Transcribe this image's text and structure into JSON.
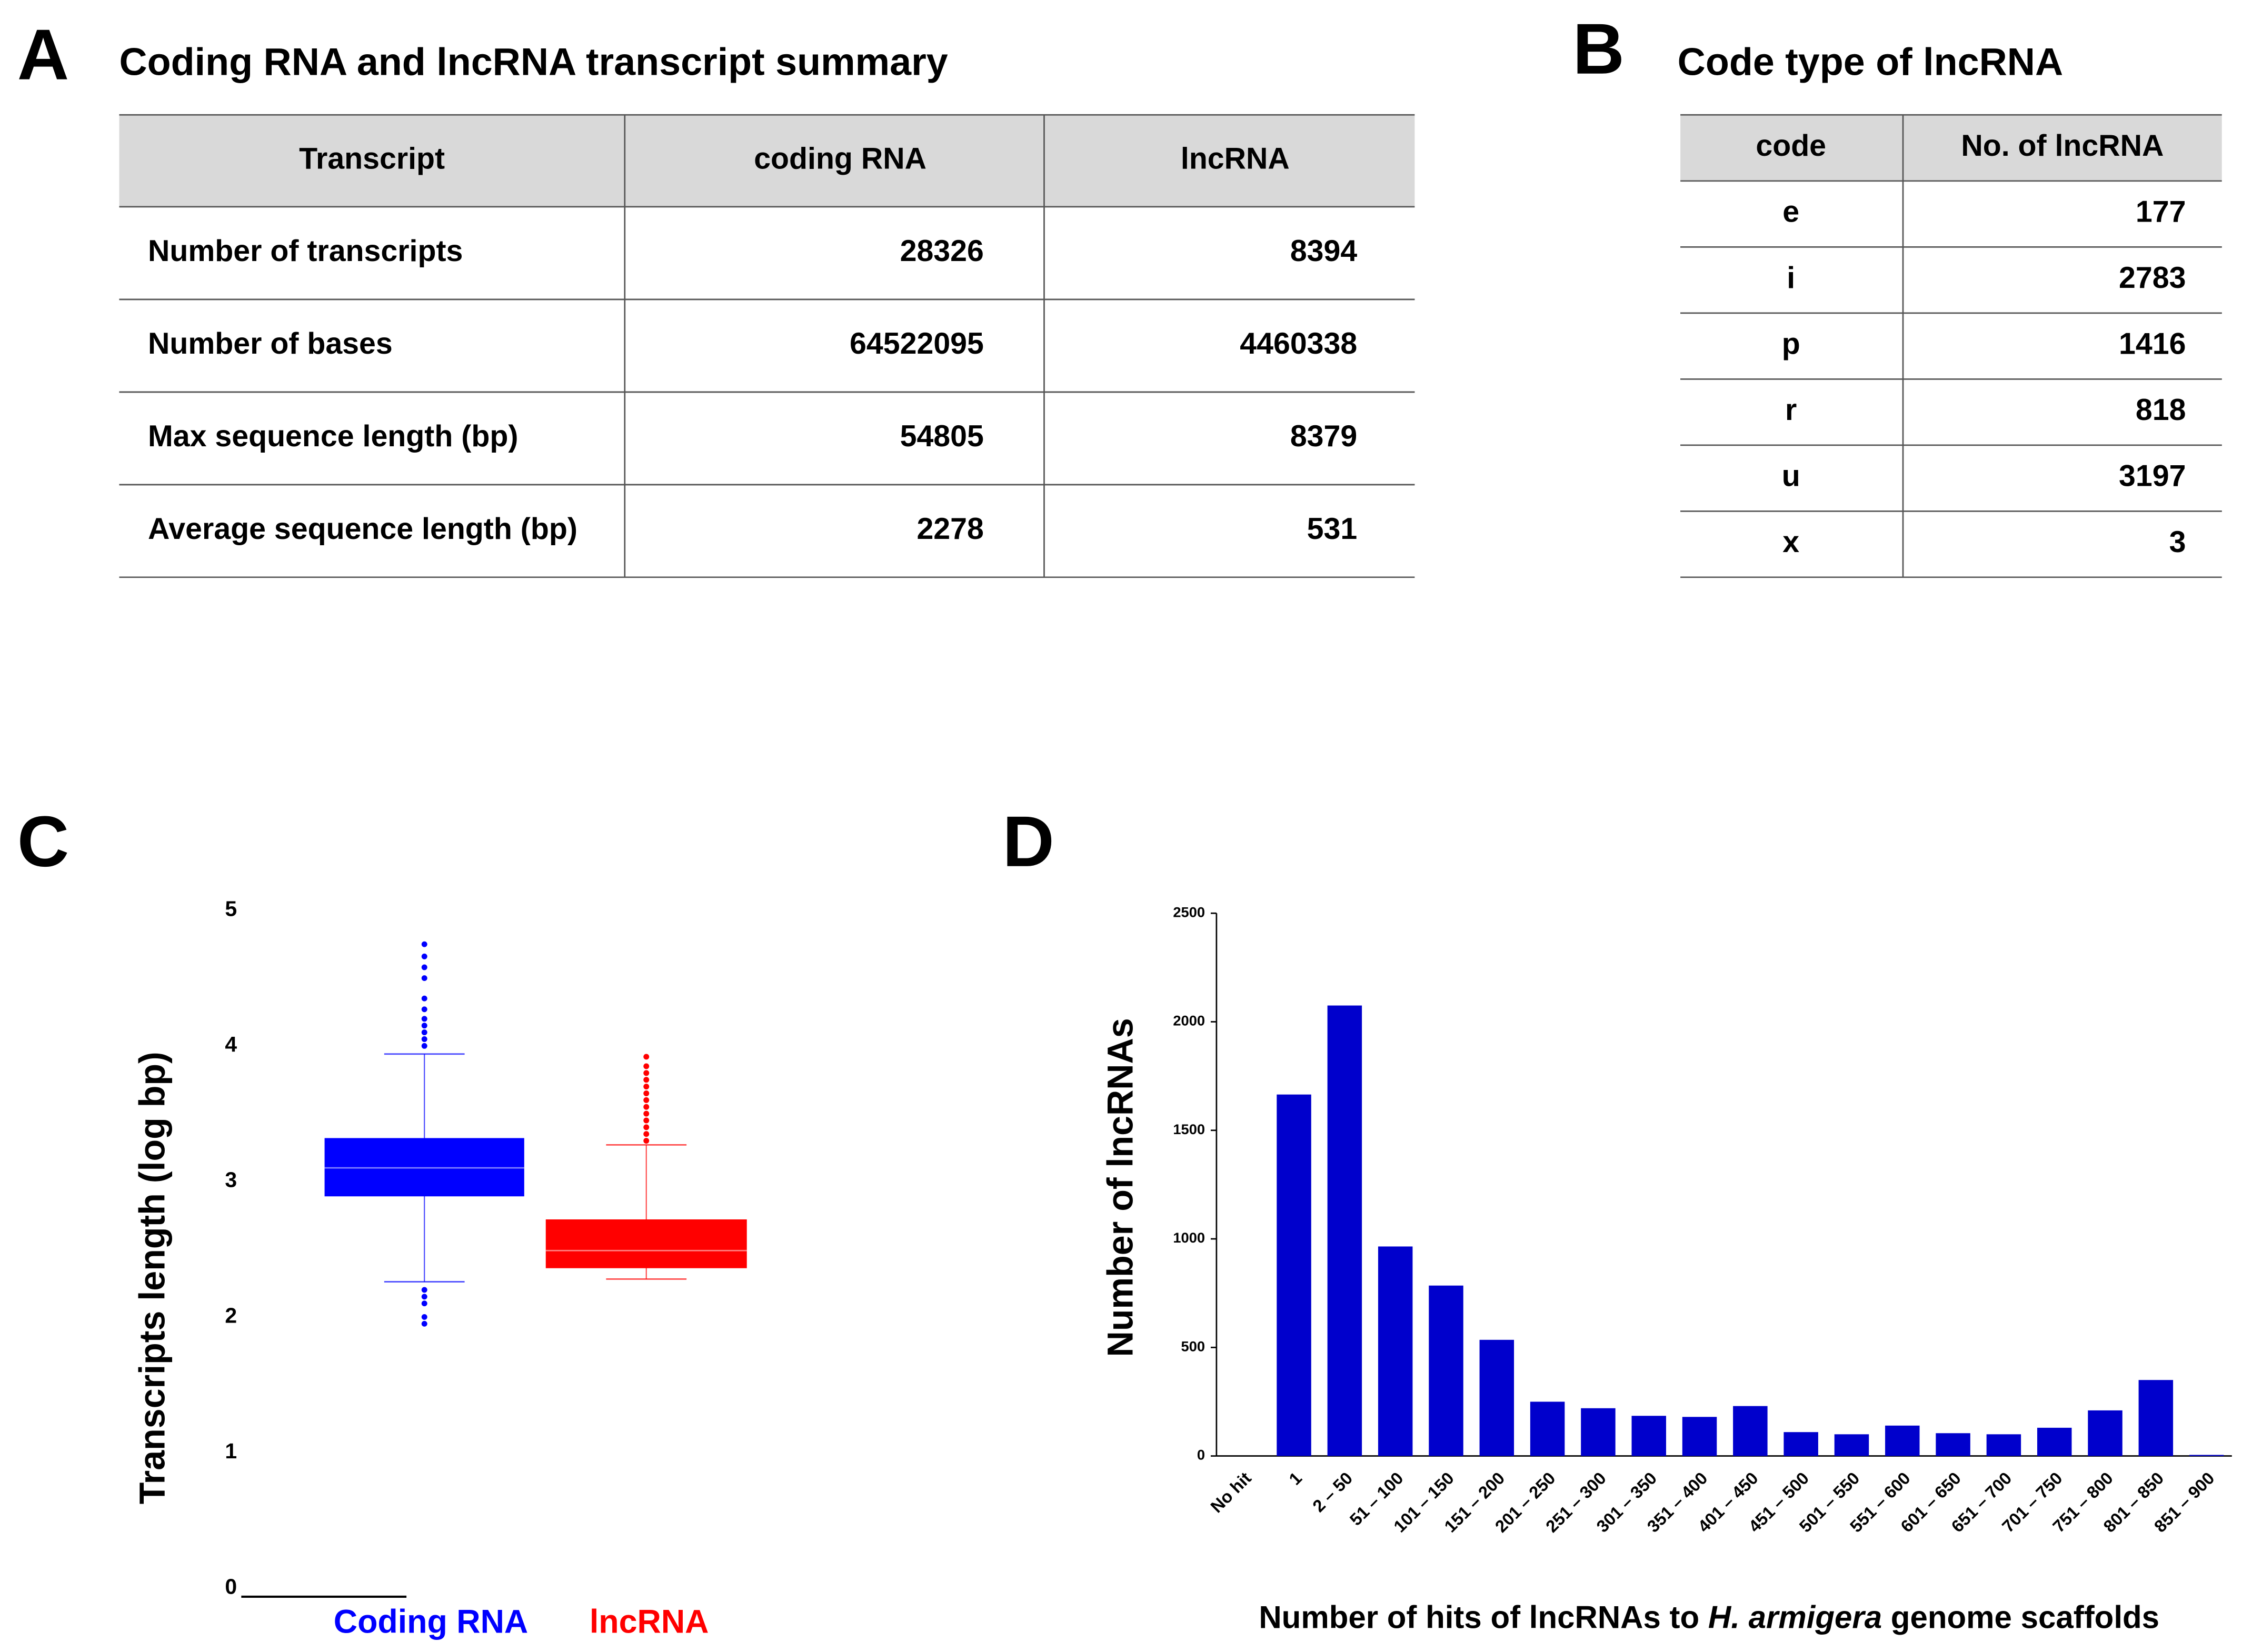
{
  "table_a": {
    "panel": "A",
    "title": "Coding RNA and lncRNA transcript summary",
    "header": [
      "Transcript",
      "coding RNA",
      "lncRNA"
    ],
    "rows": [
      [
        "Number of transcripts",
        28326,
        8394
      ],
      [
        "Number of bases",
        64522095,
        4460338
      ],
      [
        "Max sequence length (bp)",
        54805,
        8379
      ],
      [
        "Average sequence length (bp)",
        2278,
        531
      ]
    ]
  },
  "table_b": {
    "panel": "B",
    "title": "Code type of lncRNA",
    "header": [
      "code",
      "No. of  lncRNA"
    ],
    "rows": [
      [
        "e",
        177
      ],
      [
        "i",
        2783
      ],
      [
        "p",
        1416
      ],
      [
        "r",
        818
      ],
      [
        "u",
        3197
      ],
      [
        "x",
        3
      ]
    ]
  },
  "chart_data": [
    {
      "type": "box",
      "panel": "C",
      "y_label": "Transcripts length (log bp)",
      "ylim": [
        0,
        5
      ],
      "yticks": [
        0,
        1,
        2,
        3,
        4,
        5
      ],
      "series": [
        {
          "name": "Coding RNA",
          "color": "#0000ff",
          "whisker_low": 2.26,
          "q1": 2.89,
          "median": 3.1,
          "q3": 3.32,
          "whisker_high": 3.94,
          "outliers": [
            4.75,
            4.66,
            4.58,
            4.5,
            4.35,
            4.27,
            4.2,
            4.15,
            4.1,
            4.05,
            4.0,
            2.2,
            2.15,
            2.1,
            2.0,
            1.95
          ]
        },
        {
          "name": "lncRNA",
          "color": "#ff0000",
          "whisker_low": 2.28,
          "q1": 2.36,
          "median": 2.49,
          "q3": 2.72,
          "whisker_high": 3.27,
          "outliers": [
            3.92,
            3.85,
            3.8,
            3.75,
            3.7,
            3.65,
            3.6,
            3.55,
            3.5,
            3.45,
            3.4,
            3.35,
            3.3
          ]
        }
      ]
    },
    {
      "type": "bar",
      "panel": "D",
      "y_label": "Number of lncRNAs",
      "x_label": [
        "Number of hits of lncRNAs to ",
        "H. armigera",
        " genome scaffolds"
      ],
      "categories": [
        "No hit",
        "1",
        "2 – 50",
        "51 – 100",
        "101 – 150",
        "151 – 200",
        "201 – 250",
        "251 – 300",
        "301 – 350",
        "351 – 400",
        "401 – 450",
        "451 – 500",
        "501 – 550",
        "551 – 600",
        "601 – 650",
        "651 – 700",
        "701 – 750",
        "751 – 800",
        "801 – 850",
        "851 – 900"
      ],
      "values": [
        0,
        1665,
        2075,
        965,
        785,
        535,
        250,
        220,
        185,
        180,
        230,
        110,
        100,
        140,
        105,
        100,
        130,
        210,
        350,
        5
      ],
      "color": "#0000cc",
      "ylim": [
        0,
        2500
      ],
      "yticks": [
        0,
        500,
        1000,
        1500,
        2000,
        2500
      ]
    }
  ]
}
